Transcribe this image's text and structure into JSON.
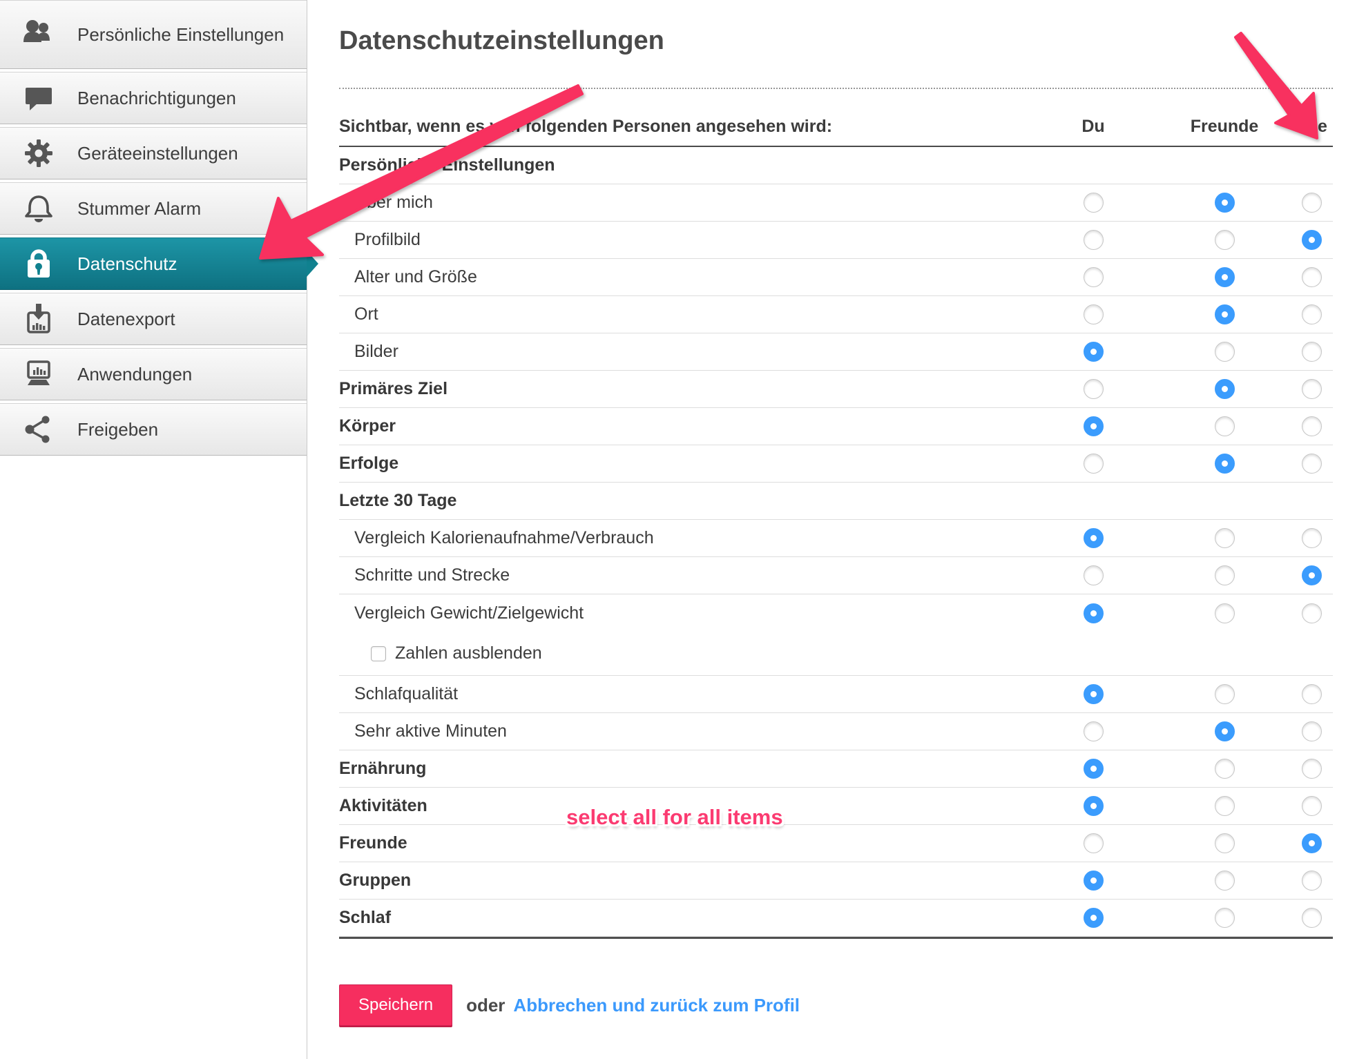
{
  "sidebar": {
    "items": [
      {
        "label": "Persönliche Einstellungen",
        "icon": "people-icon",
        "active": false
      },
      {
        "label": "Benachrichtigungen",
        "icon": "speech-bubble-icon",
        "active": false
      },
      {
        "label": "Geräteeinstellungen",
        "icon": "gear-icon",
        "active": false
      },
      {
        "label": "Stummer Alarm",
        "icon": "bell-icon",
        "active": false
      },
      {
        "label": "Datenschutz",
        "icon": "lock-icon",
        "active": true
      },
      {
        "label": "Datenexport",
        "icon": "export-box-icon",
        "active": false
      },
      {
        "label": "Anwendungen",
        "icon": "laptop-chart-icon",
        "active": false
      },
      {
        "label": "Freigeben",
        "icon": "share-icon",
        "active": false
      }
    ]
  },
  "main": {
    "title": "Datenschutzeinstellungen",
    "table": {
      "header_label": "Sichtbar, wenn es von folgenden Personen angesehen wird:",
      "columns": [
        "Du",
        "Freunde",
        "Alle"
      ],
      "rows": [
        {
          "label": "Persönliche Einstellungen",
          "type": "group"
        },
        {
          "label": "Über mich",
          "type": "item",
          "selected": "Freunde"
        },
        {
          "label": "Profilbild",
          "type": "item",
          "selected": "Alle"
        },
        {
          "label": "Alter und Größe",
          "type": "item",
          "selected": "Freunde"
        },
        {
          "label": "Ort",
          "type": "item",
          "selected": "Freunde"
        },
        {
          "label": "Bilder",
          "type": "item",
          "selected": "Du"
        },
        {
          "label": "Primäres Ziel",
          "type": "bold",
          "selected": "Freunde"
        },
        {
          "label": "Körper",
          "type": "bold",
          "selected": "Du"
        },
        {
          "label": "Erfolge",
          "type": "bold",
          "selected": "Freunde"
        },
        {
          "label": "Letzte 30 Tage",
          "type": "group"
        },
        {
          "label": "Vergleich Kalorienaufnahme/Verbrauch",
          "type": "item",
          "selected": "Du"
        },
        {
          "label": "Schritte und Strecke",
          "type": "item",
          "selected": "Alle"
        },
        {
          "label": "Vergleich Gewicht/Zielgewicht",
          "type": "item",
          "selected": "Du",
          "no_divider": true
        },
        {
          "label": "Zahlen ausblenden",
          "type": "checkbox",
          "checked": false
        },
        {
          "label": "Schlafqualität",
          "type": "item",
          "selected": "Du"
        },
        {
          "label": "Sehr aktive Minuten",
          "type": "item",
          "selected": "Freunde"
        },
        {
          "label": "Ernährung",
          "type": "bold",
          "selected": "Du"
        },
        {
          "label": "Aktivitäten",
          "type": "bold",
          "selected": "Du"
        },
        {
          "label": "Freunde",
          "type": "bold",
          "selected": "Alle"
        },
        {
          "label": "Gruppen",
          "type": "bold",
          "selected": "Du"
        },
        {
          "label": "Schlaf",
          "type": "bold",
          "selected": "Du"
        }
      ]
    },
    "footer": {
      "save_label": "Speichern",
      "or_label": "oder",
      "cancel_link": "Abbrechen und zurück zum Profil"
    }
  },
  "annotations": {
    "select_all_note": "select all for all items"
  },
  "colors": {
    "active_teal": "#10818f",
    "radio_blue": "#3b9cfd",
    "annotation_pink": "#f62e5f",
    "link_blue": "#3b99fc"
  }
}
